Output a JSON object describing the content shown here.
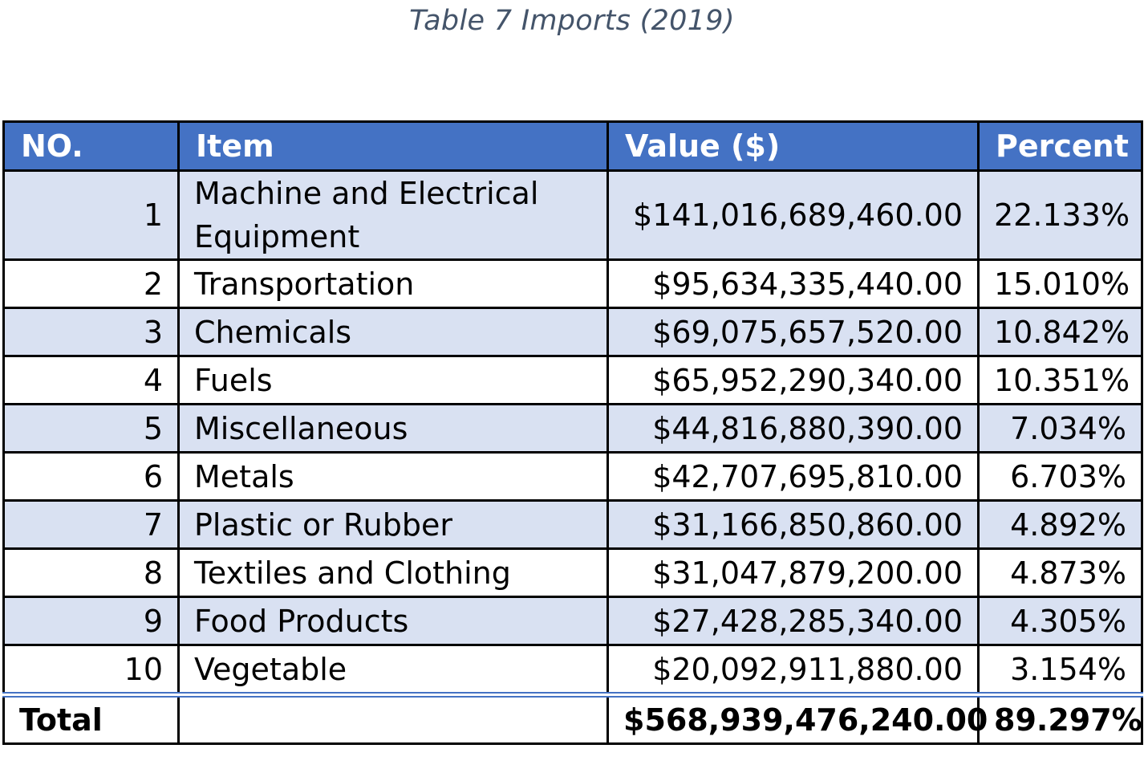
{
  "caption": "Table 7 Imports (2019)",
  "colors": {
    "header_bg": "#4472C4",
    "band_bg": "#D9E1F2",
    "caption_text": "#44546A"
  },
  "chart_data": {
    "type": "table",
    "title": "Table 7 Imports (2019)",
    "columns": [
      "NO.",
      "Item",
      "Value ($)",
      "Percent"
    ],
    "rows": [
      {
        "no": "1",
        "item": "Machine and Electrical Equipment",
        "value": "$141,016,689,460.00",
        "percent": "22.133%"
      },
      {
        "no": "2",
        "item": "Transportation",
        "value": "$95,634,335,440.00",
        "percent": "15.010%"
      },
      {
        "no": "3",
        "item": "Chemicals",
        "value": "$69,075,657,520.00",
        "percent": "10.842%"
      },
      {
        "no": "4",
        "item": "Fuels",
        "value": "$65,952,290,340.00",
        "percent": "10.351%"
      },
      {
        "no": "5",
        "item": "Miscellaneous",
        "value": "$44,816,880,390.00",
        "percent": "7.034%"
      },
      {
        "no": "6",
        "item": "Metals",
        "value": "$42,707,695,810.00",
        "percent": "6.703%"
      },
      {
        "no": "7",
        "item": "Plastic or Rubber",
        "value": "$31,166,850,860.00",
        "percent": "4.892%"
      },
      {
        "no": "8",
        "item": "Textiles and Clothing",
        "value": "$31,047,879,200.00",
        "percent": "4.873%"
      },
      {
        "no": "9",
        "item": "Food Products",
        "value": "$27,428,285,340.00",
        "percent": "4.305%"
      },
      {
        "no": "10",
        "item": "Vegetable",
        "value": "$20,092,911,880.00",
        "percent": "3.154%"
      }
    ],
    "total": {
      "label": "Total",
      "item": "",
      "value": "$568,939,476,240.00",
      "percent": "89.297%"
    }
  }
}
